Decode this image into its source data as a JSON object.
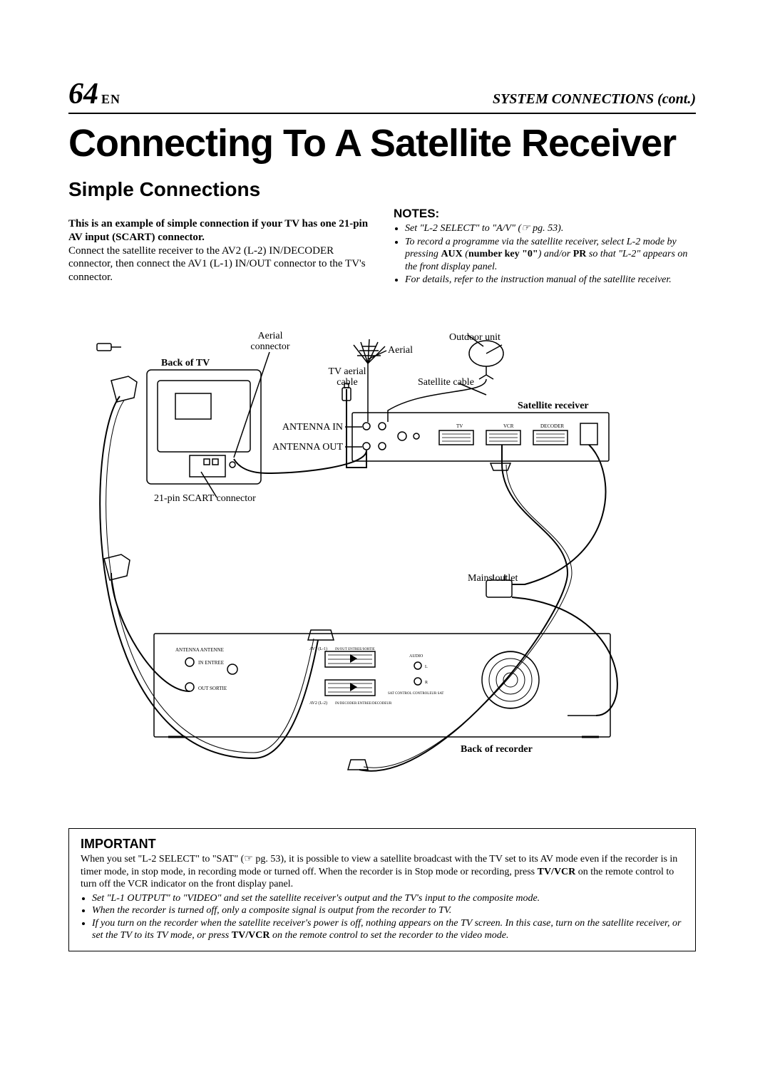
{
  "header": {
    "page_number": "64",
    "lang": "EN",
    "section": "SYSTEM CONNECTIONS (cont.)"
  },
  "title": "Connecting To A Satellite Receiver",
  "subtitle": "Simple Connections",
  "intro": {
    "bold": "This is an example of simple connection if your TV has one 21-pin AV input (SCART) connector.",
    "rest": "Connect the satellite receiver to the AV2 (L-2) IN/DECODER connector, then connect the AV1 (L-1) IN/OUT connector to the TV's connector."
  },
  "notes": {
    "heading": "NOTES:",
    "items": [
      "Set \"L-2 SELECT\" to \"A/V\" (☞ pg. 53).",
      "To record a programme via the satellite receiver, select L-2 mode by pressing <b class=\"up\">AUX</b> (<b class=\"up\">number key \"0\"</b>) and/or <b class=\"up\">PR</b> so that \"L-2\" appears on the front display panel.",
      "For details, refer to the instruction manual of the satellite receiver."
    ]
  },
  "diagram": {
    "labels": {
      "back_of_tv": "Back of TV",
      "aerial_connector": "Aerial connector",
      "tv_aerial_cable": "TV aerial cable",
      "aerial": "Aerial",
      "outdoor_unit": "Outdoor unit",
      "satellite_cable": "Satellite cable",
      "satellite_receiver": "Satellite receiver",
      "antenna_in": "ANTENNA IN",
      "antenna_out": "ANTENNA OUT",
      "scart_21": "21-pin SCART connector",
      "mains_outlet": "Mains outlet",
      "back_of_recorder": "Back of recorder",
      "sat_ports": {
        "tv": "TV",
        "vcr": "VCR",
        "decoder": "DECODER"
      },
      "rec_ports": {
        "ant_in": "IN ENTREE",
        "ant_out": "OUT SORTIE",
        "antenna": "ANTENNA ANTENNE",
        "av1": "AV1 (L-1)",
        "av1_sub": "IN/OUT ENTREE/SORTIE",
        "av2": "AV2 (L-2)",
        "av2_sub": "IN/DECODER ENTREE/DECODEUR",
        "audio": "AUDIO",
        "audio_out": "OUT SORTIE",
        "audio_l": "L",
        "audio_r": "R",
        "sat_ctrl": "SAT CONTROL CONTROLEUR SAT"
      }
    },
    "style": {
      "stroke": "#000000",
      "stroke_width": 1.5,
      "label_fontsize": 14,
      "bold_label_fontsize": 14,
      "port_label_fontsize": 7
    }
  },
  "important": {
    "heading": "IMPORTANT",
    "lead": "When you set \"L-2 SELECT\" to \"SAT\" (☞ pg. 53), it is possible to view a satellite broadcast with the TV set to its AV mode even if the recorder is in timer mode, in stop mode, in recording mode or turned off. When the recorder is in Stop mode or recording, press <b>TV/VCR</b> on the remote control to turn off the VCR indicator on the front display panel.",
    "items": [
      "Set \"L-1 OUTPUT\" to \"VIDEO\" and set the satellite receiver's output and the TV's input to the composite mode.",
      "When the recorder is turned off, only a composite signal is output from the recorder to TV.",
      "If you turn on the recorder when the satellite receiver's power is off, nothing appears on the TV screen. In this case, turn on the satellite receiver, or set the TV to its TV mode, or press <b class=\"up\">TV/VCR</b> on the remote control to set the recorder to the video mode."
    ]
  }
}
